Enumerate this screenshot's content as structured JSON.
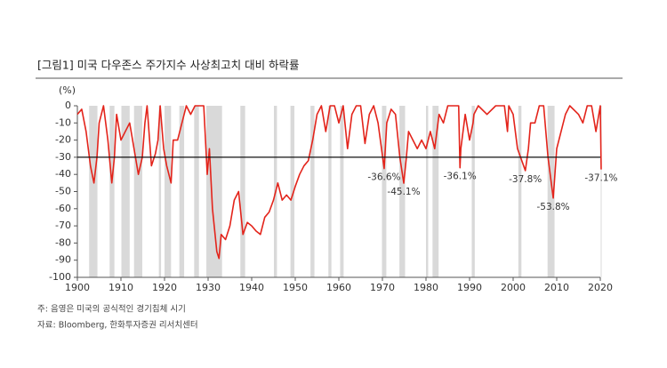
{
  "chart_data": {
    "type": "line",
    "title": "[그림1]   미국 다우존스 주가지수 사상최고치 대비 하락률",
    "y_label": "(%)",
    "notes": [
      "주: 음영은 미국의 공식적인 경기침체 시기",
      "자료: Bloomberg, 한화투자증권 리서치센터"
    ],
    "xlim": [
      1900,
      2020
    ],
    "xticks": [
      1900,
      1910,
      1920,
      1930,
      1940,
      1950,
      1960,
      1970,
      1980,
      1990,
      2000,
      2010,
      2020
    ],
    "ylim": [
      -100,
      0
    ],
    "yticks": [
      0,
      -10,
      -20,
      -30,
      -40,
      -50,
      -60,
      -70,
      -80,
      -90,
      -100
    ],
    "reference_line": -30,
    "recession_color": "#d9d9d9",
    "recessions": [
      [
        1902.7,
        1904.6
      ],
      [
        1907.4,
        1908.5
      ],
      [
        1910.1,
        1912.0
      ],
      [
        1913.0,
        1914.9
      ],
      [
        1918.7,
        1919.2
      ],
      [
        1920.0,
        1921.5
      ],
      [
        1923.4,
        1924.5
      ],
      [
        1926.8,
        1927.9
      ],
      [
        1929.6,
        1933.2
      ],
      [
        1937.4,
        1938.5
      ],
      [
        1945.1,
        1945.8
      ],
      [
        1948.9,
        1949.8
      ],
      [
        1953.5,
        1954.4
      ],
      [
        1957.6,
        1958.3
      ],
      [
        1960.3,
        1961.1
      ],
      [
        1969.9,
        1970.9
      ],
      [
        1973.9,
        1975.2
      ],
      [
        1980.0,
        1980.5
      ],
      [
        1981.5,
        1982.9
      ],
      [
        1990.5,
        1991.2
      ],
      [
        2001.2,
        2001.9
      ],
      [
        2007.9,
        2009.5
      ],
      [
        2020.1,
        2020.3
      ]
    ],
    "series": [
      {
        "name": "DJIA",
        "color": "#e3241b",
        "x": [
          1900,
          1901,
          1902,
          1903,
          1903.8,
          1904.5,
          1905,
          1906,
          1907,
          1907.9,
          1908.5,
          1909,
          1910,
          1911,
          1912,
          1913,
          1914,
          1914.9,
          1915.5,
          1916,
          1917,
          1917.9,
          1918.5,
          1919,
          1919.8,
          1920.5,
          1921.5,
          1922,
          1923,
          1924,
          1925,
          1926,
          1927,
          1928,
          1929,
          1929.8,
          1930.3,
          1931,
          1932,
          1932.5,
          1933,
          1934,
          1935,
          1936,
          1937,
          1938,
          1939,
          1940,
          1941,
          1942,
          1943,
          1944,
          1945,
          1946,
          1947,
          1948,
          1949,
          1950,
          1951,
          1952,
          1953,
          1954,
          1955,
          1956,
          1957,
          1958,
          1959,
          1960,
          1961,
          1962,
          1963,
          1964,
          1965,
          1966,
          1967,
          1968,
          1969,
          1970.4,
          1971,
          1972,
          1973,
          1974,
          1974.9,
          1975.5,
          1976,
          1977,
          1978,
          1979,
          1980,
          1981,
          1982,
          1983,
          1984,
          1985,
          1986,
          1987.5,
          1987.8,
          1988,
          1989,
          1990,
          1990.8,
          1991,
          1992,
          1994,
          1996,
          1998,
          1998.7,
          1999,
          2000,
          2001,
          2002.8,
          2003.5,
          2004,
          2005,
          2006,
          2007,
          2008,
          2009.2,
          2010,
          2011,
          2012,
          2013,
          2015,
          2016,
          2017,
          2018,
          2019,
          2020,
          2020.2
        ],
        "values": [
          -5,
          -2,
          -15,
          -35,
          -45,
          -30,
          -10,
          0,
          -20,
          -45,
          -30,
          -5,
          -20,
          -15,
          -10,
          -25,
          -40,
          -30,
          -10,
          0,
          -35,
          -28,
          -20,
          0,
          -25,
          -35,
          -45,
          -20,
          -20,
          -10,
          0,
          -5,
          0,
          0,
          0,
          -40,
          -25,
          -60,
          -85,
          -89,
          -75,
          -78,
          -70,
          -55,
          -50,
          -75,
          -68,
          -70,
          -73,
          -75,
          -65,
          -62,
          -55,
          -45,
          -55,
          -52,
          -55,
          -47,
          -40,
          -35,
          -32,
          -20,
          -5,
          0,
          -15,
          0,
          0,
          -10,
          0,
          -25,
          -5,
          0,
          0,
          -22,
          -5,
          0,
          -10,
          -36.6,
          -10,
          -2,
          -5,
          -30,
          -45.1,
          -30,
          -15,
          -20,
          -25,
          -20,
          -25,
          -15,
          -25,
          -5,
          -10,
          0,
          0,
          0,
          -36.1,
          -25,
          -5,
          -20,
          -10,
          -5,
          0,
          -5,
          0,
          0,
          -15,
          0,
          -5,
          -25,
          -37.8,
          -25,
          -10,
          -10,
          0,
          0,
          -30,
          -53.8,
          -25,
          -15,
          -5,
          0,
          -5,
          -10,
          0,
          0,
          -15,
          0,
          -37.1
        ]
      }
    ],
    "annotations": [
      {
        "x": 1970.4,
        "value": -36.6,
        "label": "-36.6%"
      },
      {
        "x": 1974.9,
        "value": -45.1,
        "label": "-45.1%"
      },
      {
        "x": 1987.8,
        "value": -36.1,
        "label": "-36.1%"
      },
      {
        "x": 2002.8,
        "value": -37.8,
        "label": "-37.8%"
      },
      {
        "x": 2009.2,
        "value": -53.8,
        "label": "-53.8%"
      },
      {
        "x": 2020.2,
        "value": -37.1,
        "label": "-37.1%"
      }
    ]
  }
}
